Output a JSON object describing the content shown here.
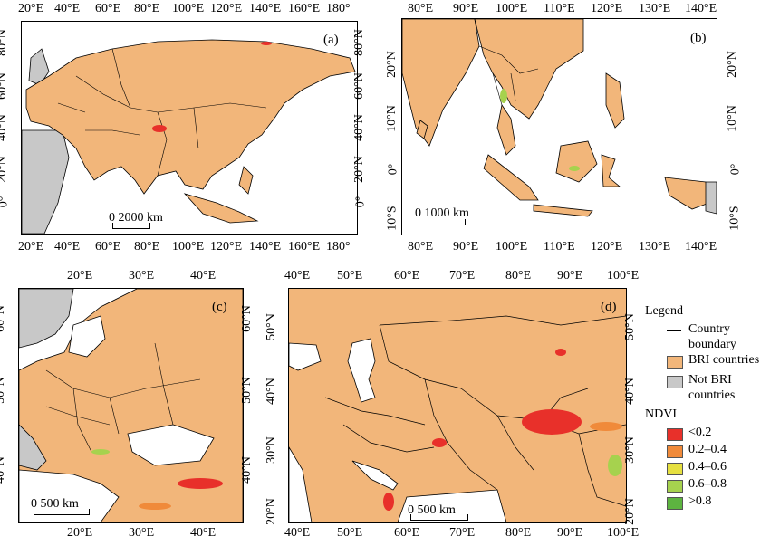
{
  "panels": {
    "a": {
      "label": "(a)",
      "top_ticks": [
        "20°E",
        "40°E",
        "60°E",
        "80°E",
        "100°E",
        "120°E",
        "140°E",
        "160°E",
        "180°"
      ],
      "bottom_ticks": [
        "20°E",
        "40°E",
        "60°E",
        "80°E",
        "100°E",
        "120°E",
        "140°E",
        "160°E",
        "180°"
      ],
      "lat_ticks": [
        "80°N",
        "60°N",
        "40°N",
        "20°N",
        "0°"
      ],
      "scale": "0 2000 km"
    },
    "b": {
      "label": "(b)",
      "top_ticks": [
        "80°E",
        "90°E",
        "100°E",
        "110°E",
        "120°E",
        "130°E",
        "140°E"
      ],
      "bottom_ticks": [
        "80°E",
        "90°E",
        "100°E",
        "110°E",
        "120°E",
        "130°E",
        "140°E"
      ],
      "lat_ticks": [
        "20°N",
        "10°N",
        "0°",
        "10°S"
      ],
      "scale": "0 1000 km"
    },
    "c": {
      "label": "(c)",
      "top_ticks": [
        "20°E",
        "30°E",
        "40°E"
      ],
      "bottom_ticks": [
        "20°E",
        "30°E",
        "40°E"
      ],
      "lat_ticks": [
        "60°N",
        "50°N",
        "40°N"
      ],
      "scale": "0 500 km"
    },
    "d": {
      "label": "(d)",
      "top_ticks": [
        "40°E",
        "50°E",
        "60°E",
        "70°E",
        "80°E",
        "90°E",
        "100°E"
      ],
      "bottom_ticks": [
        "40°E",
        "50°E",
        "60°E",
        "70°E",
        "80°E",
        "90°E",
        "100°E"
      ],
      "lat_ticks": [
        "50°N",
        "40°N",
        "30°N",
        "20°N"
      ],
      "scale": "0 500 km"
    }
  },
  "legend": {
    "title": "Legend",
    "boundary_line1": "Country",
    "boundary_line2": "boundary",
    "bri": "BRI countries",
    "not_bri_line1": "Not BRI",
    "not_bri_line2": "countries",
    "ndvi_title": "NDVI",
    "classes": [
      {
        "label": "<0.2",
        "color": "#e8302a"
      },
      {
        "label": "0.2–0.4",
        "color": "#f08a3a"
      },
      {
        "label": "0.4–0.6",
        "color": "#e6e040"
      },
      {
        "label": "0.6–0.8",
        "color": "#a6d24e"
      },
      {
        "label": ">0.8",
        "color": "#5db440"
      }
    ]
  },
  "colors": {
    "bri": "#f2b67a",
    "not_bri": "#c8c8c8",
    "boundary": "#000000"
  }
}
